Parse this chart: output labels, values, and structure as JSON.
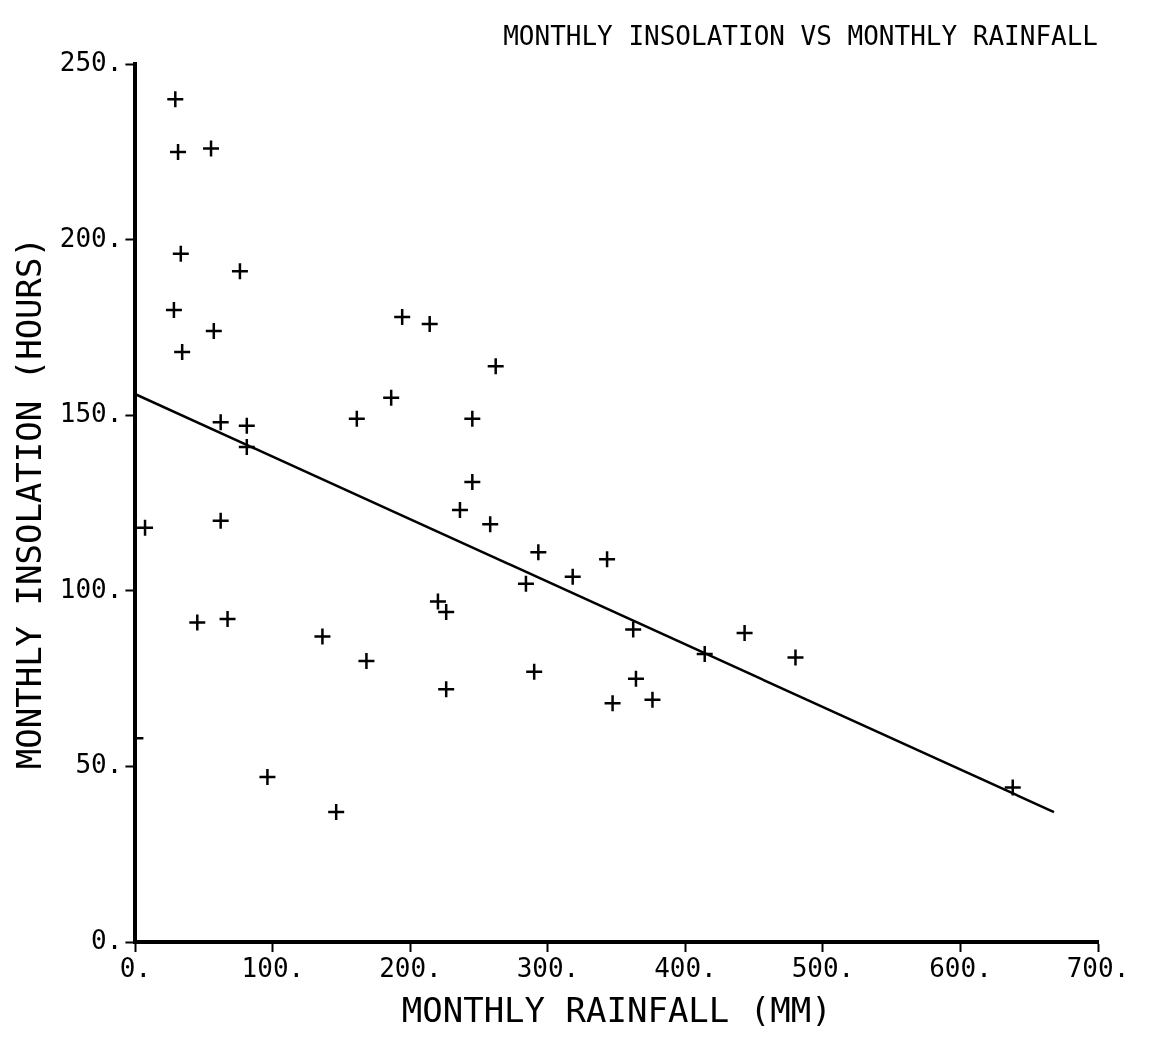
{
  "chart_data": {
    "type": "scatter",
    "title": "MONTHLY INSOLATION VS MONTHLY RAINFALL",
    "xlabel": "MONTHLY RAINFALL (MM)",
    "ylabel": "MONTHLY INSOLATION (HOURS)",
    "xlim": [
      0,
      700
    ],
    "ylim": [
      0,
      250
    ],
    "xticks": [
      {
        "value": 0,
        "label": "0."
      },
      {
        "value": 100,
        "label": "100."
      },
      {
        "value": 200,
        "label": "200."
      },
      {
        "value": 300,
        "label": "300."
      },
      {
        "value": 400,
        "label": "400."
      },
      {
        "value": 500,
        "label": "500."
      },
      {
        "value": 600,
        "label": "600."
      },
      {
        "value": 700,
        "label": "700."
      }
    ],
    "yticks": [
      {
        "value": 0,
        "label": "0."
      },
      {
        "value": 50,
        "label": "50."
      },
      {
        "value": 100,
        "label": "100."
      },
      {
        "value": 150,
        "label": "150."
      },
      {
        "value": 200,
        "label": "200."
      },
      {
        "value": 250,
        "label": "250."
      }
    ],
    "grid": false,
    "legend": false,
    "series": [
      {
        "color": "#000000",
        "marker": "cross",
        "x": [
          29,
          31,
          55,
          33,
          76,
          28,
          57,
          34,
          194,
          214,
          186,
          161,
          62,
          81,
          81,
          7,
          62,
          45,
          67,
          136,
          168,
          220,
          226,
          226,
          0,
          96,
          146,
          262,
          245,
          245,
          236,
          258,
          293,
          343,
          318,
          284,
          362,
          414,
          443,
          480,
          290,
          364,
          347,
          376,
          638
        ],
        "values": [
          240,
          225,
          226,
          196,
          191,
          180,
          174,
          168,
          178,
          176,
          155,
          149,
          148,
          147,
          141,
          118,
          120,
          91,
          92,
          87,
          80,
          97,
          94,
          72,
          58,
          47,
          37,
          164,
          149,
          131,
          123,
          119,
          111,
          109,
          104,
          102,
          89,
          82,
          88,
          81,
          77,
          75,
          68,
          69,
          44
        ]
      },
      {
        "type": "line",
        "color": "#000000",
        "x": [
          0,
          668
        ],
        "values": [
          156,
          37
        ]
      }
    ]
  }
}
